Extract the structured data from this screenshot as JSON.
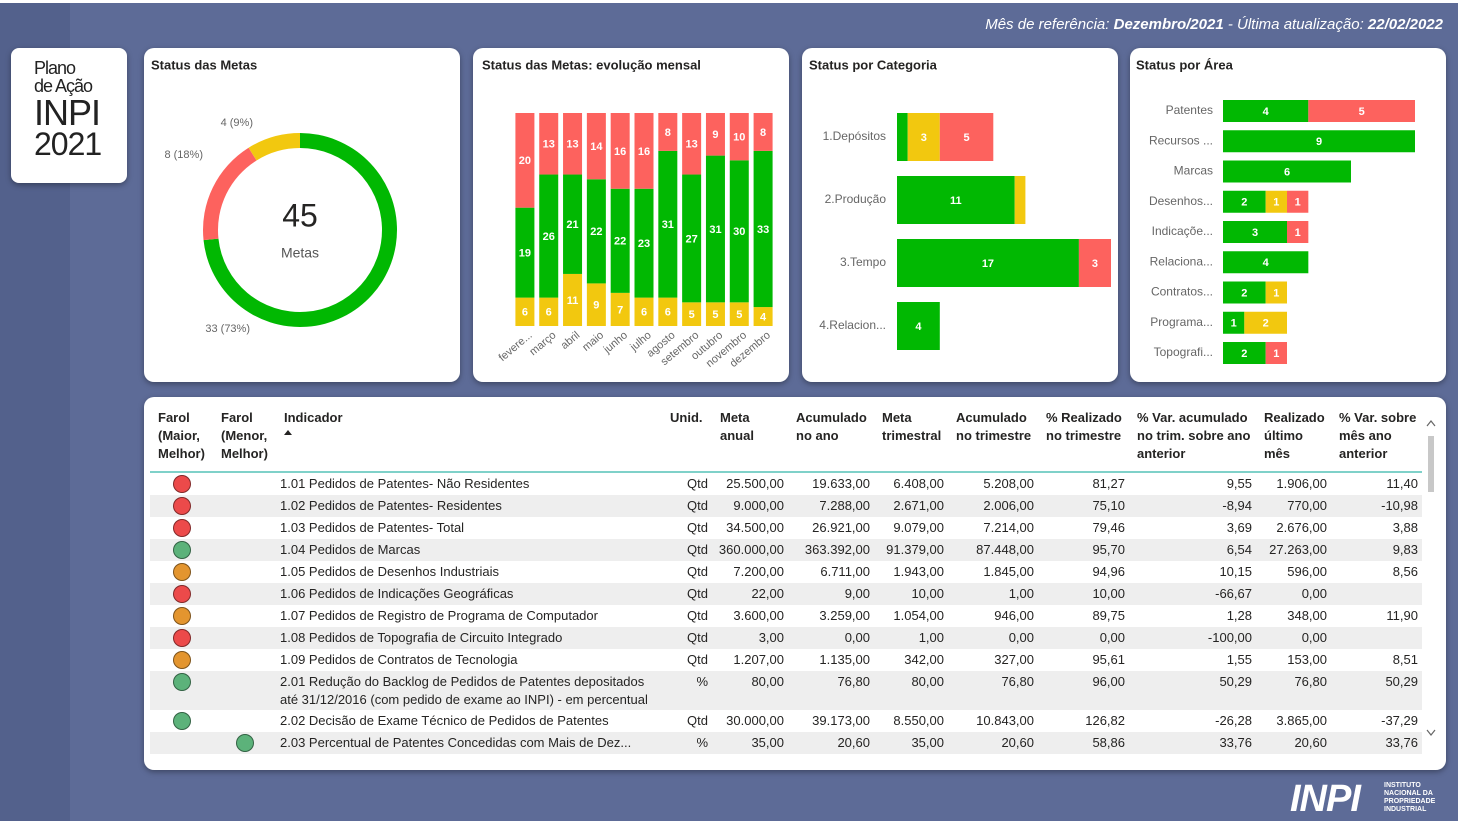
{
  "header": {
    "reference_label": "Mês de referência:",
    "reference_month": "Dezembro/2021",
    "update_label": "- Última atualização:",
    "update_date": "22/02/2022"
  },
  "logo": {
    "line1": "Plano",
    "line2": "de Ação",
    "line3": "INPI",
    "line4": "2021"
  },
  "footer": {
    "brand": "INPI",
    "line1": "INSTITUTO",
    "line2": "NACIONAL DA",
    "line3": "PROPRIEDADE",
    "line4": "INDUSTRIAL"
  },
  "chart_data": [
    {
      "type": "donut",
      "title": "Status das Metas",
      "total": 45,
      "center_label": "Metas",
      "values": [
        33,
        8,
        4
      ],
      "value_labels": [
        "33 (73%)",
        "8 (18%)",
        "4 (9%)"
      ],
      "colors": [
        "#01b802",
        "#fd625e",
        "#f2c80f"
      ]
    },
    {
      "type": "bar",
      "orientation": "vertical",
      "stacked": true,
      "title": "Status das Metas: evolução mensal",
      "categories": [
        "fevere...",
        "março",
        "abril",
        "maio",
        "junho",
        "julho",
        "agosto",
        "setembro",
        "outubro",
        "novembro",
        "dezembro"
      ],
      "ylim": [
        0,
        45
      ],
      "series": [
        {
          "color": "#f2c80f",
          "values": [
            6,
            6,
            11,
            9,
            7,
            6,
            6,
            5,
            5,
            5,
            4
          ]
        },
        {
          "color": "#01b802",
          "values": [
            19,
            26,
            21,
            22,
            22,
            23,
            31,
            27,
            31,
            30,
            33
          ]
        },
        {
          "color": "#fd625e",
          "values": [
            20,
            13,
            13,
            14,
            16,
            16,
            8,
            13,
            9,
            10,
            8
          ]
        }
      ]
    },
    {
      "type": "bar",
      "orientation": "horizontal",
      "stacked": true,
      "title": "Status por Categoria",
      "categories": [
        "1.Depósitos",
        "2.Produção",
        "3.Tempo",
        "4.Relacion..."
      ],
      "xlim": [
        0,
        20
      ],
      "series": [
        {
          "color": "#01b802",
          "values": [
            1,
            11,
            17,
            4
          ]
        },
        {
          "color": "#f2c80f",
          "values": [
            3,
            1,
            null,
            null
          ]
        },
        {
          "color": "#fd625e",
          "values": [
            5,
            null,
            3,
            null
          ]
        }
      ]
    },
    {
      "type": "bar",
      "orientation": "horizontal",
      "stacked": true,
      "title": "Status por Área",
      "categories": [
        "Patentes",
        "Recursos ...",
        "Marcas",
        "Desenhos...",
        "Indicaçõe...",
        "Relaciona...",
        "Contratos...",
        "Programa...",
        "Topografi..."
      ],
      "xlim": [
        0,
        9
      ],
      "series": [
        {
          "color": "#01b802",
          "values": [
            4,
            9,
            6,
            2,
            3,
            4,
            2,
            1,
            2
          ]
        },
        {
          "color": "#f2c80f",
          "values": [
            null,
            null,
            null,
            1,
            null,
            null,
            1,
            2,
            null
          ]
        },
        {
          "color": "#fd625e",
          "values": [
            5,
            null,
            null,
            1,
            1,
            null,
            null,
            null,
            1
          ]
        }
      ]
    }
  ],
  "table": {
    "columns": [
      "Farol (Maior, Melhor)",
      "Farol (Menor, Melhor)",
      "Indicador",
      "Unid.",
      "Meta anual",
      "Acumulado no ano",
      "Meta trimestral",
      "Acumulado no trimestre",
      "% Realizado no trimestre",
      "% Var. acumulado no trim. sobre ano anterior",
      "Realizado último mês",
      "% Var. sobre mês ano anterior"
    ],
    "rows": [
      {
        "farol_maior": "#ec4a4a",
        "farol_menor": null,
        "cells": [
          "1.01 Pedidos de Patentes- Não Residentes",
          "Qtd",
          "25.500,00",
          "19.633,00",
          "6.408,00",
          "5.208,00",
          "81,27",
          "9,55",
          "1.906,00",
          "11,40"
        ]
      },
      {
        "farol_maior": "#ec4a4a",
        "farol_menor": null,
        "cells": [
          "1.02 Pedidos de Patentes- Residentes",
          "Qtd",
          "9.000,00",
          "7.288,00",
          "2.671,00",
          "2.006,00",
          "75,10",
          "-8,94",
          "770,00",
          "-10,98"
        ]
      },
      {
        "farol_maior": "#ec4a4a",
        "farol_menor": null,
        "cells": [
          "1.03 Pedidos de Patentes- Total",
          "Qtd",
          "34.500,00",
          "26.921,00",
          "9.079,00",
          "7.214,00",
          "79,46",
          "3,69",
          "2.676,00",
          "3,88"
        ]
      },
      {
        "farol_maior": "#5cb27a",
        "farol_menor": null,
        "cells": [
          "1.04 Pedidos de Marcas",
          "Qtd",
          "360.000,00",
          "363.392,00",
          "91.379,00",
          "87.448,00",
          "95,70",
          "6,54",
          "27.263,00",
          "9,83"
        ]
      },
      {
        "farol_maior": "#e3952f",
        "farol_menor": null,
        "cells": [
          "1.05 Pedidos de Desenhos Industriais",
          "Qtd",
          "7.200,00",
          "6.711,00",
          "1.943,00",
          "1.845,00",
          "94,96",
          "10,15",
          "596,00",
          "8,56"
        ]
      },
      {
        "farol_maior": "#ec4a4a",
        "farol_menor": null,
        "cells": [
          "1.06 Pedidos de Indicações Geográficas",
          "Qtd",
          "22,00",
          "9,00",
          "10,00",
          "1,00",
          "10,00",
          "-66,67",
          "0,00",
          null
        ]
      },
      {
        "farol_maior": "#e3952f",
        "farol_menor": null,
        "cells": [
          "1.07 Pedidos de Registro de Programa de Computador",
          "Qtd",
          "3.600,00",
          "3.259,00",
          "1.054,00",
          "946,00",
          "89,75",
          "1,28",
          "348,00",
          "11,90"
        ]
      },
      {
        "farol_maior": "#ec4a4a",
        "farol_menor": null,
        "cells": [
          "1.08 Pedidos de Topografia de Circuito Integrado",
          "Qtd",
          "3,00",
          "0,00",
          "1,00",
          "0,00",
          "0,00",
          "-100,00",
          "0,00",
          null
        ]
      },
      {
        "farol_maior": "#e3952f",
        "farol_menor": null,
        "cells": [
          "1.09 Pedidos de Contratos de Tecnologia",
          "Qtd",
          "1.207,00",
          "1.135,00",
          "342,00",
          "327,00",
          "95,61",
          "1,55",
          "153,00",
          "8,51"
        ]
      },
      {
        "farol_maior": "#5cb27a",
        "farol_menor": null,
        "cells": [
          "2.01 Redução do Backlog de Pedidos de Patentes depositados até 31/12/2016 (com pedido de exame ao INPI) - em percentual",
          "%",
          "80,00",
          "76,80",
          "80,00",
          "76,80",
          "96,00",
          "50,29",
          "76,80",
          "50,29"
        ]
      },
      {
        "farol_maior": "#5cb27a",
        "farol_menor": null,
        "cells": [
          "2.02 Decisão de Exame Técnico de Pedidos de Patentes",
          "Qtd",
          "30.000,00",
          "39.173,00",
          "8.550,00",
          "10.843,00",
          "126,82",
          "-26,28",
          "3.865,00",
          "-37,29"
        ]
      },
      {
        "farol_maior": null,
        "farol_menor": "#5cb27a",
        "cells": [
          "2.03 Percentual de Patentes Concedidas com Mais de Dez...",
          "%",
          "35,00",
          "20,60",
          "35,00",
          "20,60",
          "58,86",
          "33,76",
          "20,60",
          "33,76"
        ]
      }
    ]
  }
}
